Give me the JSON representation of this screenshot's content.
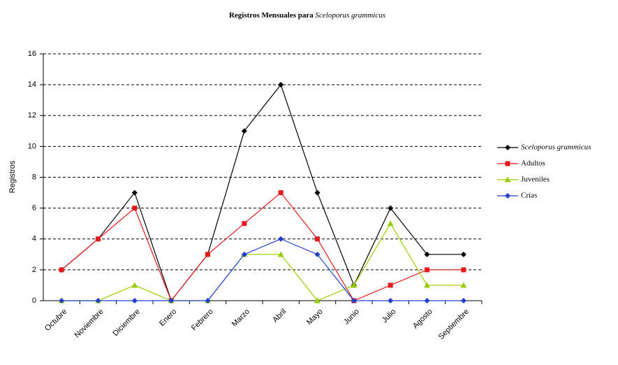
{
  "chart_data": {
    "type": "line",
    "title": [
      "Registros Mensuales para",
      "Sceloporus grammicus"
    ],
    "y_label": "Registros",
    "categories": [
      "Octubre",
      "Noviembre",
      "Diciembre",
      "Enero",
      "Febrero",
      "Marzo",
      "Abril",
      "Mayo",
      "Junio",
      "Julio",
      "Agosto",
      "Septiembre"
    ],
    "series": [
      {
        "name": "Sceloporus grammicus",
        "color": "#000000",
        "marker": "diamond",
        "values": [
          2,
          4,
          7,
          0,
          3,
          11,
          14,
          7,
          1,
          6,
          3,
          3
        ]
      },
      {
        "name": "Adultos",
        "color": "#e41a1c",
        "marker": "square",
        "values": [
          2,
          4,
          6,
          0,
          3,
          5,
          7,
          4,
          0,
          1,
          2,
          2
        ]
      },
      {
        "name": "Juveniles",
        "color": "#99cc00",
        "marker": "triangle",
        "values": [
          0,
          0,
          1,
          0,
          0,
          3,
          3,
          0,
          1,
          5,
          1,
          1
        ]
      },
      {
        "name": "Crías",
        "color": "#1f3fd0",
        "marker": "diamond",
        "values": [
          0,
          0,
          0,
          0,
          0,
          3,
          4,
          3,
          0,
          0,
          0,
          0
        ]
      }
    ],
    "ylim": [
      0,
      16
    ],
    "yticks": [
      0,
      2,
      4,
      6,
      8,
      10,
      12,
      14,
      16
    ],
    "grid": true,
    "legend": "right"
  }
}
